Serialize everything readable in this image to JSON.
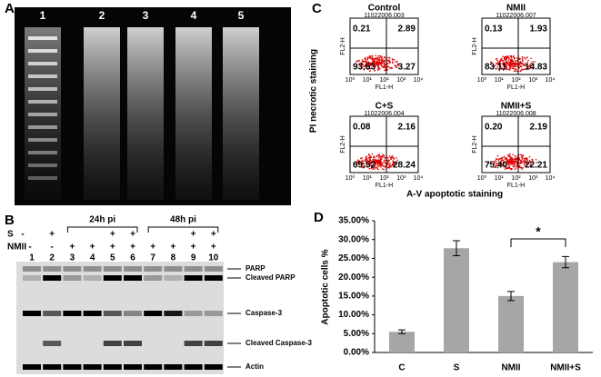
{
  "panels": {
    "a": "A",
    "b": "B",
    "c": "C",
    "d": "D"
  },
  "gel": {
    "lanes": [
      "1",
      "2",
      "3",
      "4",
      "5"
    ]
  },
  "blot": {
    "s_label": "S",
    "nmii_label": "NMII",
    "s_row": [
      "-",
      "+",
      null,
      null,
      "+",
      "+",
      null,
      null,
      "+",
      "+"
    ],
    "nmii_row": [
      "-",
      "-",
      "+",
      "+",
      "+",
      "+",
      "+",
      "+",
      "+",
      "+"
    ],
    "lanes": [
      "1",
      "2",
      "3",
      "4",
      "5",
      "6",
      "7",
      "8",
      "9",
      "10"
    ],
    "groups": [
      "24h pi",
      "48h pi"
    ],
    "bands": [
      "PARP",
      "Cleaved PARP",
      "Caspase-3",
      "Cleaved Caspase-3",
      "Actin"
    ]
  },
  "flow": {
    "y_title": "PI necrotic staining",
    "x_title": "A-V apoptotic staining",
    "x_axis": "FL1-H",
    "y_axis": "FL2-H",
    "ticks": [
      "10⁰",
      "10¹",
      "10²",
      "10³",
      "10⁴"
    ],
    "plots": [
      {
        "title": "Control",
        "file_id": "11022006.003",
        "quadrants": [
          "0.21",
          "2.89",
          "93.63",
          "3.27"
        ]
      },
      {
        "title": "NMII",
        "file_id": "11022006.007",
        "quadrants": [
          "0.13",
          "1.93",
          "83.11",
          "14.83"
        ]
      },
      {
        "title": "C+S",
        "file_id": "11022006.004",
        "quadrants": [
          "0.08",
          "2.16",
          "69.52",
          "28.24"
        ]
      },
      {
        "title": "NMII+S",
        "file_id": "11022006.008",
        "quadrants": [
          "0.20",
          "2.19",
          "75.40",
          "22.21"
        ]
      }
    ]
  },
  "chart_data": {
    "type": "bar",
    "y_label": "Apoptotic cells %",
    "categories": [
      "C",
      "S",
      "NMII",
      "NMII+S"
    ],
    "values": [
      5.5,
      27.7,
      15,
      24
    ],
    "errors": [
      0.5,
      2,
      1.2,
      1.5
    ],
    "color": "#a6a6a6",
    "ylim": [
      0,
      35
    ],
    "yticks": [
      {
        "value": 0,
        "label": "0.00%"
      },
      {
        "value": 5,
        "label": "5.00%"
      },
      {
        "value": 10,
        "label": "10.00%"
      },
      {
        "value": 15,
        "label": "15.00%"
      },
      {
        "value": 20,
        "label": "20.00%"
      },
      {
        "value": 25,
        "label": "25.00%"
      },
      {
        "value": 30,
        "label": "30.00%"
      },
      {
        "value": 35,
        "label": "35.00%"
      }
    ],
    "significance": "*"
  }
}
